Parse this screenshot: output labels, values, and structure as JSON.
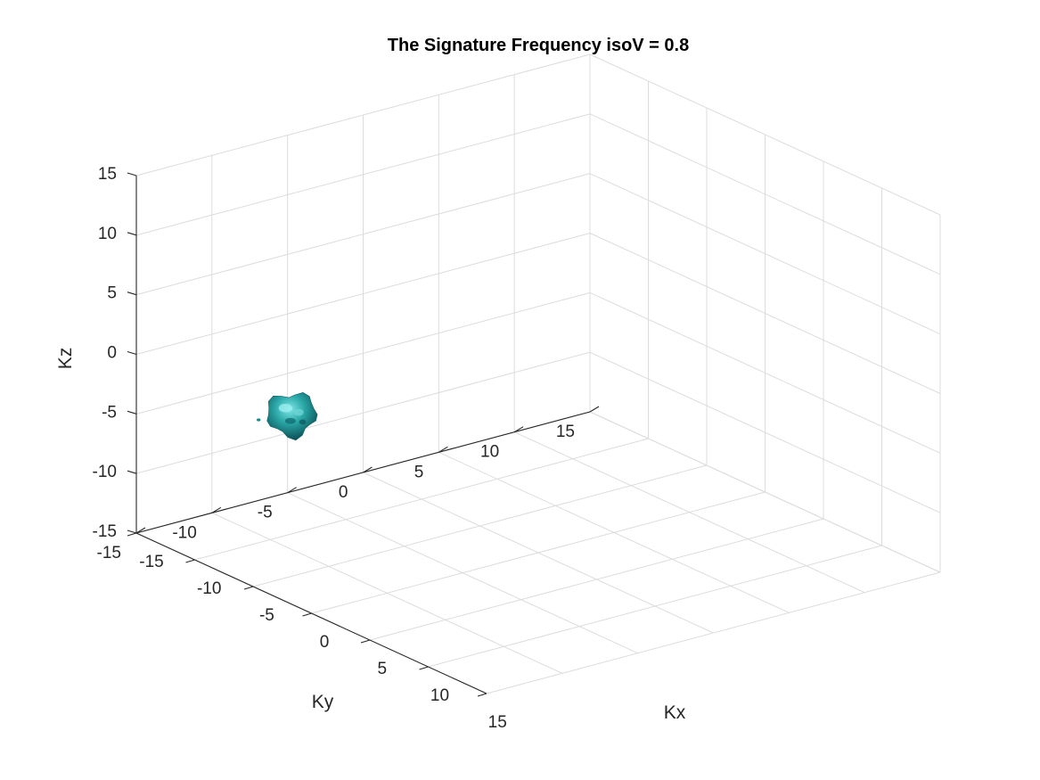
{
  "chart_data": {
    "type": "isosurface-3d",
    "title": "The Signature Frequency isoV = 0.8",
    "xlabel": "Kx",
    "ylabel": "Ky",
    "zlabel": "Kz",
    "xlim": [
      -15,
      15
    ],
    "ylim": [
      -15,
      15
    ],
    "zlim": [
      -15,
      15
    ],
    "xticks": [
      -15,
      -10,
      -5,
      0,
      5,
      10,
      15
    ],
    "yticks": [
      -15,
      -10,
      -5,
      0,
      5,
      10,
      15
    ],
    "zticks": [
      -15,
      -10,
      -5,
      0,
      5,
      10,
      15
    ],
    "xtick_labels": [
      "-15",
      "-10",
      "-5",
      "0",
      "5",
      "10",
      "15"
    ],
    "ytick_labels": [
      "-15",
      "-10",
      "-5",
      "0",
      "5",
      "10",
      "15"
    ],
    "ztick_labels": [
      "-15",
      "-10",
      "-5",
      "0",
      "5",
      "10",
      "15"
    ],
    "grid": true,
    "surface_color": "#1a9a9a",
    "isosurface": {
      "value": 0.8,
      "center": [
        -3,
        -14,
        0
      ],
      "extent": 2
    }
  }
}
